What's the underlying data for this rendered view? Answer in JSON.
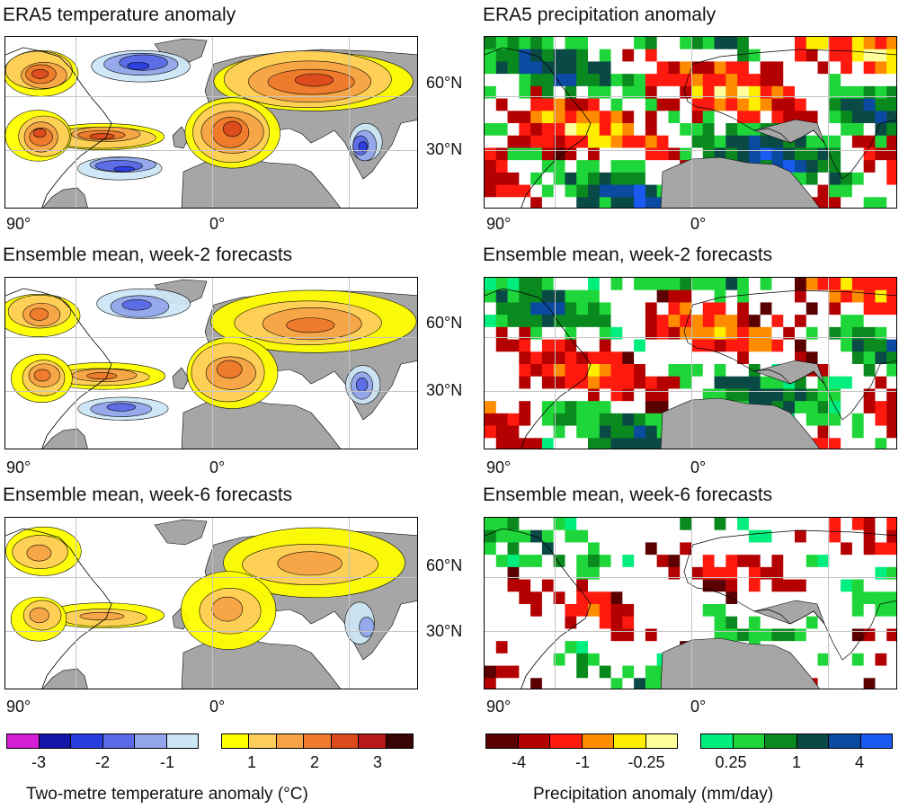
{
  "panels": {
    "temp": [
      {
        "title": "ERA5 temperature anomaly",
        "style": "era"
      },
      {
        "title": "Ensemble mean, week-2 forecasts",
        "style": "w2"
      },
      {
        "title": "Ensemble mean, week-6 forecasts",
        "style": "w6"
      }
    ],
    "precip": [
      {
        "title": "ERA5 precipitation anomaly",
        "style": "era"
      },
      {
        "title": "Ensemble mean, week-2 forecasts",
        "style": "w2"
      },
      {
        "title": "Ensemble mean, week-6 forecasts",
        "style": "w6"
      }
    ]
  },
  "axes": {
    "lat_labels": [
      "60°N",
      "30°N"
    ],
    "lon_labels": [
      "90°",
      "0°"
    ]
  },
  "legend": {
    "temperature": {
      "title": "Two-metre temperature anomaly (°C)",
      "cold_labels": [
        "-3",
        "-2",
        "-1"
      ],
      "warm_labels": [
        "1",
        "2",
        "3"
      ],
      "cold_colors": [
        "#d21fd6",
        "#1414a8",
        "#2a3ee0",
        "#5a6ae6",
        "#93a6ea",
        "#cde6f6"
      ],
      "warm_colors": [
        "#ffff00",
        "#ffce5a",
        "#f6a446",
        "#ef7a2c",
        "#dc4a1c",
        "#b81818",
        "#3a0404"
      ]
    },
    "precipitation": {
      "title": "Precipitation anomaly (mm/day)",
      "dry_labels": [
        "-4",
        "-1",
        "-0.25"
      ],
      "wet_labels": [
        "0.25",
        "1",
        "4"
      ],
      "dry_colors": [
        "#5a0000",
        "#b40000",
        "#ff1a10",
        "#ff8c00",
        "#ffee00",
        "#ffff9c"
      ],
      "wet_colors": [
        "#00ee7e",
        "#1ed63a",
        "#0a8a1e",
        "#0a4a46",
        "#0a4aa0",
        "#1a5af0"
      ]
    },
    "land_color": "#a6a6a6"
  }
}
